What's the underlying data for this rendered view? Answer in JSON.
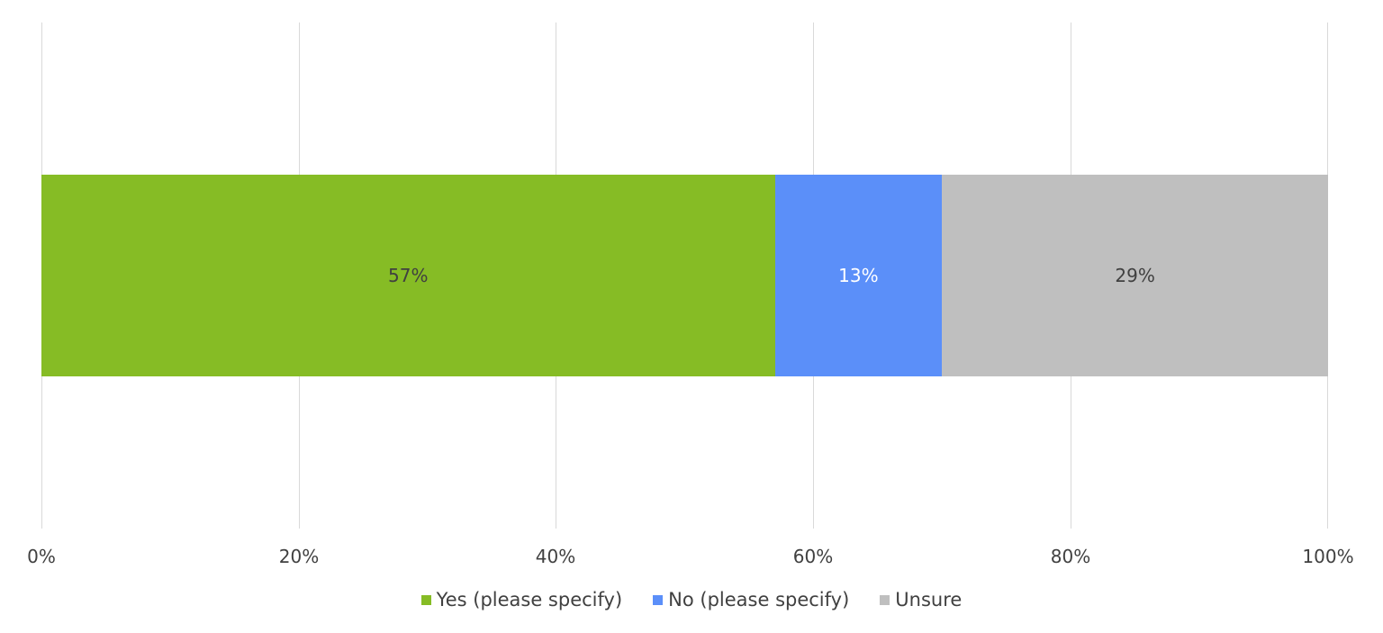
{
  "chart_data": {
    "type": "bar",
    "orientation": "horizontal",
    "stacked": true,
    "percent": true,
    "title": "",
    "xlabel": "",
    "ylabel": "",
    "xlim": [
      0,
      100
    ],
    "grid": true,
    "legend_position": "bottom",
    "categories": [
      ""
    ],
    "x_ticks": [
      "0%",
      "20%",
      "40%",
      "60%",
      "80%",
      "100%"
    ],
    "series": [
      {
        "name": "Yes (please specify)",
        "values": [
          57
        ],
        "label": "57%",
        "color": "#86bc25",
        "label_color": "#404040"
      },
      {
        "name": "No (please specify)",
        "values": [
          13
        ],
        "label": "13%",
        "color": "#5b8ff9",
        "label_color": "#ffffff"
      },
      {
        "name": "Unsure",
        "values": [
          29
        ],
        "label": "29%",
        "color": "#bfbfbf",
        "label_color": "#404040"
      }
    ]
  }
}
